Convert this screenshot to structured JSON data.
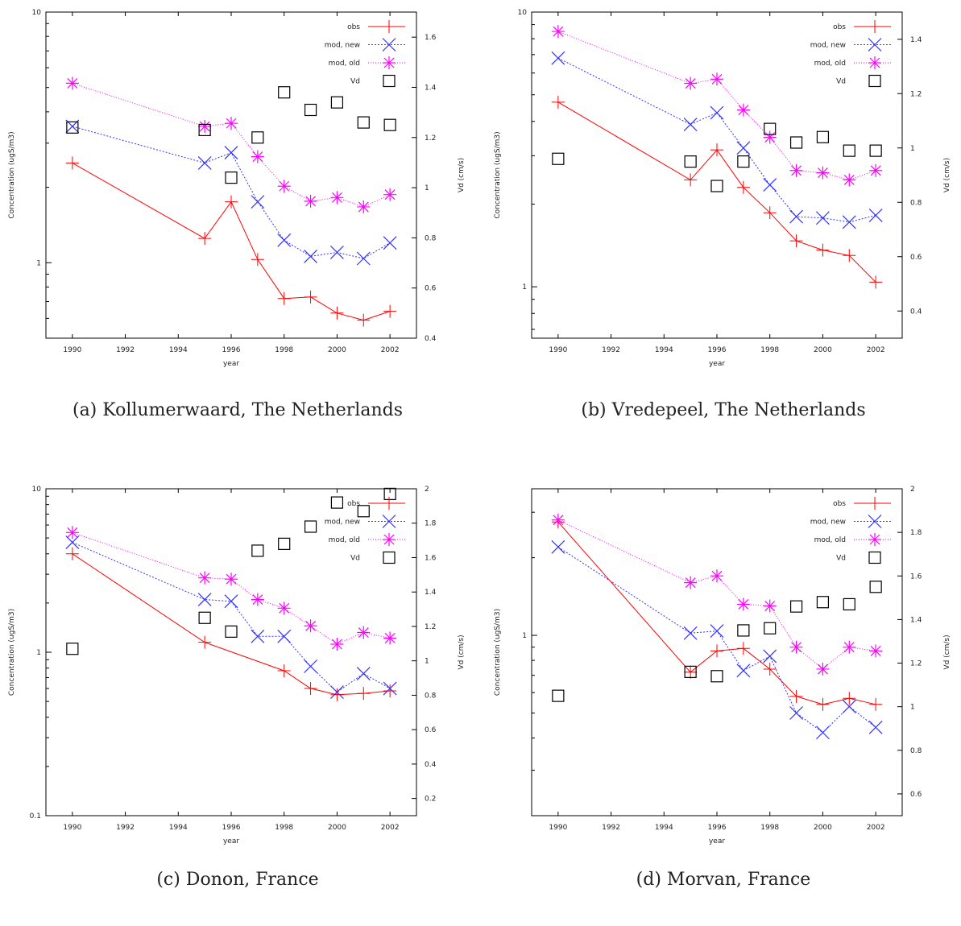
{
  "legend_labels": {
    "obs": "obs",
    "mod_new": "mod, new",
    "mod_old": "mod, old",
    "vd": "Vd"
  },
  "colors": {
    "obs": "#ff0000",
    "mod_new": "#3333ff",
    "mod_old": "#ff00ff",
    "vd": "#000000"
  },
  "chart_data": [
    {
      "type": "line",
      "caption": "(a) Kollumerwaard, The Netherlands",
      "xlabel": "year",
      "ylabel": "Concentration (ugS/m3)",
      "y2label": "Vd (cm/s)",
      "xlim": [
        1989,
        2003
      ],
      "xticks": [
        1990,
        1992,
        1994,
        1996,
        1998,
        2000,
        2002
      ],
      "ylim": [
        0.5,
        10
      ],
      "yscale": "log",
      "yticks": [
        1,
        10
      ],
      "ytick_labels": [
        "1",
        "10"
      ],
      "y2lim": [
        0.4,
        1.7
      ],
      "y2ticks": [
        0.4,
        0.6,
        0.8,
        1,
        1.2,
        1.4,
        1.6
      ],
      "y2tick_labels": [
        "0.4",
        "0.6",
        "0.8",
        "1",
        "1.2",
        "1.4",
        "1.6"
      ],
      "legend_position": "top-right",
      "series": [
        {
          "name": "obs",
          "x": [
            1990,
            1995,
            1996,
            1997,
            1998,
            1999,
            2000,
            2001,
            2002
          ],
          "values": [
            2.5,
            1.25,
            1.75,
            1.03,
            0.72,
            0.73,
            0.63,
            0.59,
            0.64
          ]
        },
        {
          "name": "mod, new",
          "x": [
            1990,
            1995,
            1996,
            1997,
            1998,
            1999,
            2000,
            2001,
            2002
          ],
          "values": [
            3.5,
            2.5,
            2.75,
            1.75,
            1.23,
            1.06,
            1.1,
            1.04,
            1.2
          ]
        },
        {
          "name": "mod, old",
          "x": [
            1990,
            1995,
            1996,
            1997,
            1998,
            1999,
            2000,
            2001,
            2002
          ],
          "values": [
            5.2,
            3.5,
            3.6,
            2.65,
            2.02,
            1.76,
            1.82,
            1.67,
            1.87
          ]
        },
        {
          "name": "Vd",
          "axis": "y2",
          "x": [
            1990,
            1995,
            1996,
            1997,
            1998,
            1999,
            2000,
            2001,
            2002
          ],
          "values": [
            1.24,
            1.23,
            1.04,
            1.2,
            1.38,
            1.31,
            1.34,
            1.26,
            1.25
          ]
        }
      ]
    },
    {
      "type": "line",
      "caption": "(b) Vredepeel, The Netherlands",
      "xlabel": "year",
      "ylabel": "Concentration (ugS/m3)",
      "y2label": "Vd (cm/s)",
      "xlim": [
        1989,
        2003
      ],
      "xticks": [
        1990,
        1992,
        1994,
        1996,
        1998,
        2000,
        2002
      ],
      "ylim": [
        0.65,
        10
      ],
      "yscale": "log",
      "yticks": [
        1,
        10
      ],
      "ytick_labels": [
        "1",
        "10"
      ],
      "y2lim": [
        0.3,
        1.5
      ],
      "y2ticks": [
        0.4,
        0.6,
        0.8,
        1,
        1.2,
        1.4
      ],
      "y2tick_labels": [
        "0.4",
        "0.6",
        "0.8",
        "1",
        "1.2",
        "1.4"
      ],
      "legend_position": "top-right",
      "series": [
        {
          "name": "obs",
          "x": [
            1990,
            1995,
            1996,
            1997,
            1998,
            1999,
            2000,
            2001,
            2002
          ],
          "values": [
            4.7,
            2.45,
            3.15,
            2.3,
            1.86,
            1.47,
            1.36,
            1.3,
            1.04
          ]
        },
        {
          "name": "mod, new",
          "x": [
            1990,
            1995,
            1996,
            1997,
            1998,
            1999,
            2000,
            2001,
            2002
          ],
          "values": [
            6.8,
            3.9,
            4.3,
            3.2,
            2.35,
            1.8,
            1.78,
            1.72,
            1.82
          ]
        },
        {
          "name": "mod, old",
          "x": [
            1990,
            1995,
            1996,
            1997,
            1998,
            1999,
            2000,
            2001,
            2002
          ],
          "values": [
            8.5,
            5.5,
            5.7,
            4.4,
            3.5,
            2.65,
            2.6,
            2.45,
            2.65
          ]
        },
        {
          "name": "Vd",
          "axis": "y2",
          "x": [
            1990,
            1995,
            1996,
            1997,
            1998,
            1999,
            2000,
            2001,
            2002
          ],
          "values": [
            0.96,
            0.95,
            0.86,
            0.95,
            1.07,
            1.02,
            1.04,
            0.99,
            0.99
          ]
        }
      ]
    },
    {
      "type": "line",
      "caption": "(c) Donon, France",
      "xlabel": "year",
      "ylabel": "Concentration (ugS/m3)",
      "y2label": "Vd (cm/s)",
      "xlim": [
        1989,
        2003
      ],
      "xticks": [
        1990,
        1992,
        1994,
        1996,
        1998,
        2000,
        2002
      ],
      "ylim": [
        0.1,
        10
      ],
      "yscale": "log",
      "yticks": [
        0.1,
        1,
        10
      ],
      "ytick_labels": [
        "0.1",
        "1",
        "10"
      ],
      "y2lim": [
        0.1,
        2
      ],
      "y2ticks": [
        0.2,
        0.4,
        0.6,
        0.8,
        1,
        1.2,
        1.4,
        1.6,
        1.8,
        2
      ],
      "y2tick_labels": [
        "0.2",
        "0.4",
        "0.6",
        "0.8",
        "1",
        "1.2",
        "1.4",
        "1.6",
        "1.8",
        "2"
      ],
      "legend_position": "top-right",
      "series": [
        {
          "name": "obs",
          "x": [
            1990,
            1995,
            1998,
            1999,
            2000,
            2001,
            2002
          ],
          "values": [
            4.0,
            1.15,
            0.77,
            0.6,
            0.55,
            0.56,
            0.58
          ]
        },
        {
          "name": "mod, new",
          "x": [
            1990,
            1995,
            1996,
            1997,
            1998,
            1999,
            2000,
            2001,
            2002
          ],
          "values": [
            4.7,
            2.1,
            2.05,
            1.25,
            1.25,
            0.82,
            0.57,
            0.74,
            0.6
          ]
        },
        {
          "name": "mod, old",
          "x": [
            1990,
            1995,
            1996,
            1997,
            1998,
            1999,
            2000,
            2001,
            2002
          ],
          "values": [
            5.4,
            2.85,
            2.8,
            2.1,
            1.86,
            1.45,
            1.12,
            1.32,
            1.22
          ]
        },
        {
          "name": "Vd",
          "axis": "y2",
          "x": [
            1990,
            1995,
            1996,
            1997,
            1998,
            1999,
            2000,
            2001,
            2002
          ],
          "values": [
            1.07,
            1.25,
            1.17,
            1.64,
            1.68,
            1.78,
            1.92,
            1.87,
            1.97
          ]
        }
      ]
    },
    {
      "type": "line",
      "caption": "(d) Morvan, France",
      "xlabel": "year",
      "ylabel": "Concentration (ugS/m3)",
      "y2label": "Vd (cm/s)",
      "xlim": [
        1989,
        2003
      ],
      "xticks": [
        1990,
        1992,
        1994,
        1996,
        1998,
        2000,
        2002
      ],
      "ylim": [
        0.2,
        3.7
      ],
      "yscale": "log",
      "yticks": [
        1
      ],
      "ytick_labels": [
        "1"
      ],
      "y2lim": [
        0.5,
        2
      ],
      "y2ticks": [
        0.6,
        0.8,
        1,
        1.2,
        1.4,
        1.6,
        1.8,
        2
      ],
      "y2tick_labels": [
        "0.6",
        "0.8",
        "1",
        "1.2",
        "1.4",
        "1.6",
        "1.8",
        "2"
      ],
      "legend_position": "top-right",
      "series": [
        {
          "name": "obs",
          "x": [
            1990,
            1995,
            1996,
            1997,
            1998,
            1999,
            2000,
            2001,
            2002
          ],
          "values": [
            2.75,
            0.72,
            0.87,
            0.89,
            0.74,
            0.58,
            0.54,
            0.57,
            0.54
          ]
        },
        {
          "name": "mod, new",
          "x": [
            1990,
            1995,
            1996,
            1997,
            1998,
            1999,
            2000,
            2001,
            2002
          ],
          "values": [
            2.2,
            1.02,
            1.04,
            0.73,
            0.83,
            0.5,
            0.42,
            0.53,
            0.44
          ]
        },
        {
          "name": "mod, old",
          "x": [
            1990,
            1995,
            1996,
            1997,
            1998,
            1999,
            2000,
            2001,
            2002
          ],
          "values": [
            2.8,
            1.6,
            1.7,
            1.32,
            1.3,
            0.9,
            0.74,
            0.9,
            0.87
          ]
        },
        {
          "name": "Vd",
          "axis": "y2",
          "x": [
            1990,
            1995,
            1996,
            1997,
            1998,
            1999,
            2000,
            2001,
            2002
          ],
          "values": [
            1.05,
            1.16,
            1.14,
            1.35,
            1.36,
            1.46,
            1.48,
            1.47,
            1.55
          ]
        }
      ]
    }
  ]
}
